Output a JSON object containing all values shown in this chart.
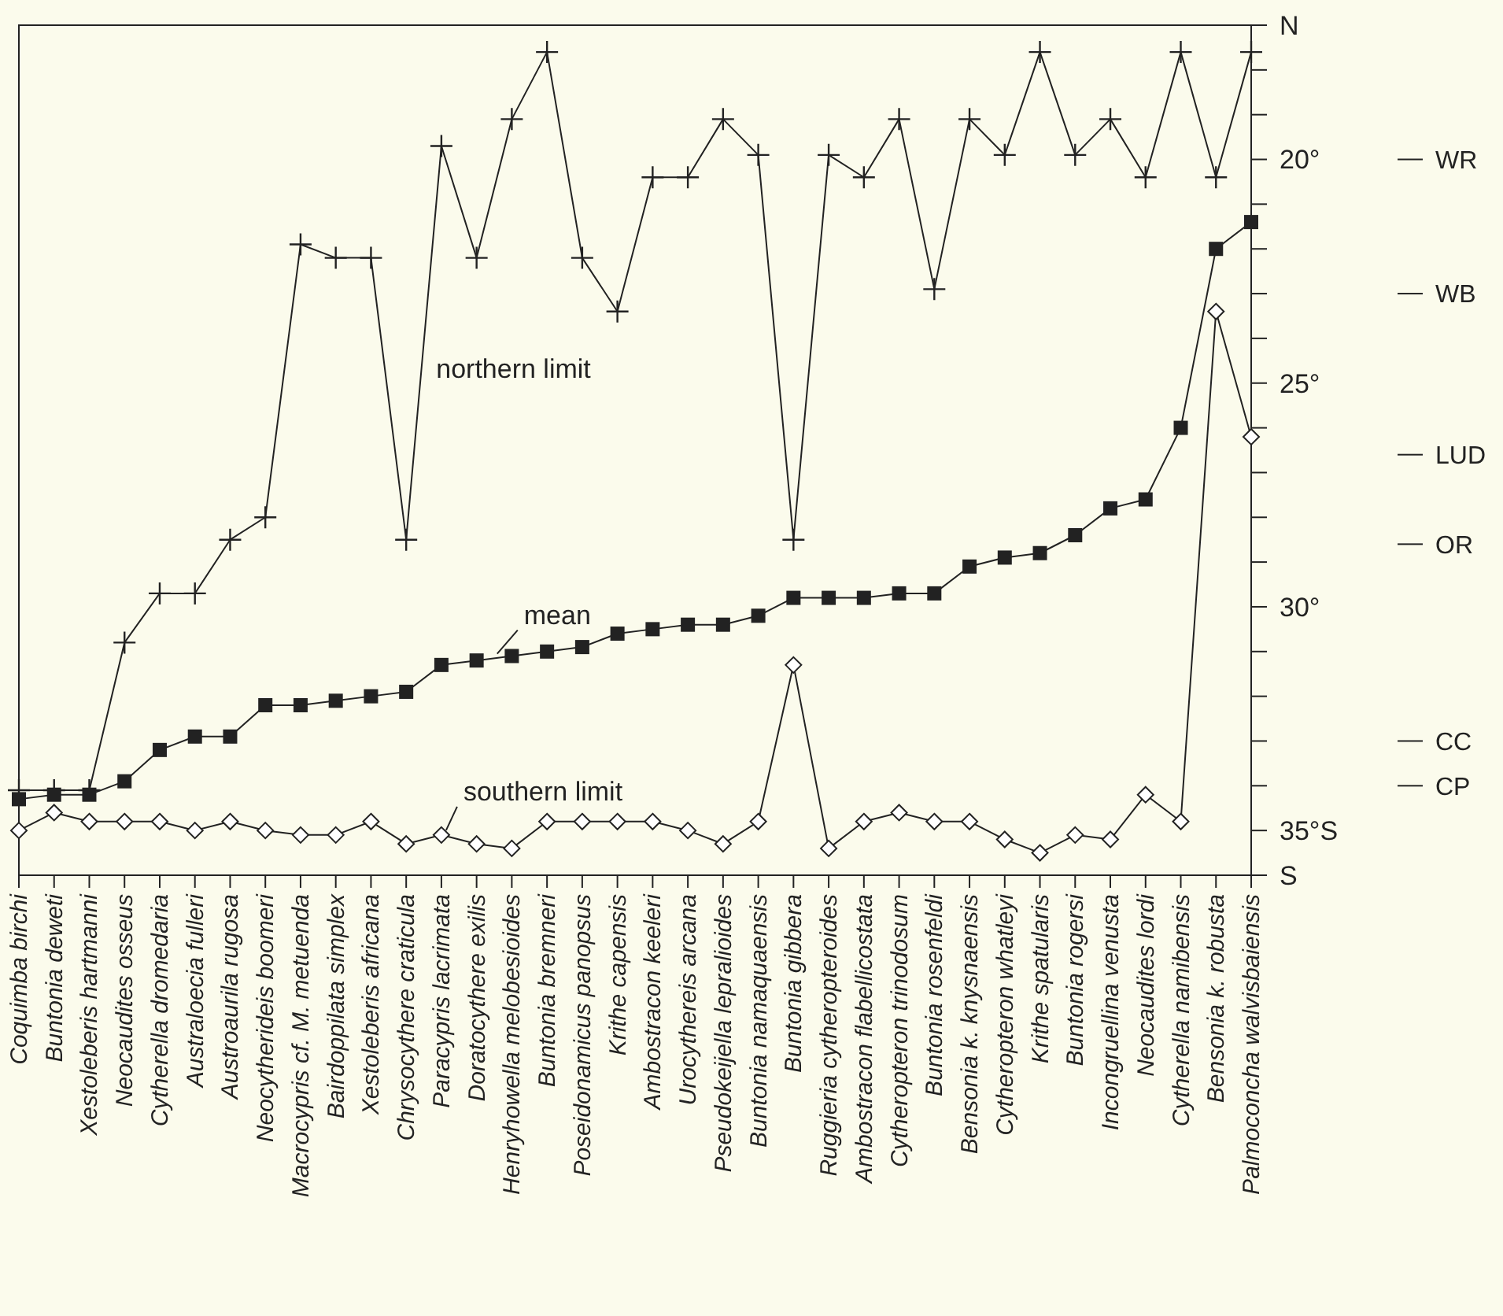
{
  "chart_data": {
    "type": "line",
    "categories": [
      "Coquimba birchi",
      "Buntonia deweti",
      "Xestoleberis hartmanni",
      "Neocaudites osseus",
      "Cytherella dromedaria",
      "Australoecia fulleri",
      "Austroaurila rugosa",
      "Neocytherideis boomeri",
      "Macrocypris cf. M. metuenda",
      "Bairdoppilata simplex",
      "Xestoleberis africana",
      "Chrysocythere craticula",
      "Paracypris lacrimata",
      "Doratocythere exilis",
      "Henryhowella melobesioides",
      "Buntonia bremneri",
      "Poseidonamicus panopsus",
      "Krithe capensis",
      "Ambostracon keeleri",
      "Urocythereis arcana",
      "Pseudokeijella lepralioides",
      "Buntonia namaquaensis",
      "Buntonia gibbera",
      "Ruggieria cytheropteroides",
      "Ambostracon flabellicostata",
      "Cytheropteron trinodosum",
      "Buntonia rosenfeldi",
      "Bensonia k. knysnaensis",
      "Cytheropteron whatleyi",
      "Krithe spatularis",
      "Buntonia rogersi",
      "Incongruellina venusta",
      "Neocaudites lordi",
      "Cytherella namibensis",
      "Bensonia k. robusta",
      "Palmoconcha walvisbaiensis"
    ],
    "series": [
      {
        "name": "northern limit",
        "color": "#222222",
        "marker": "cross",
        "values": [
          34.1,
          34.1,
          34.1,
          30.8,
          29.7,
          29.7,
          28.5,
          28.0,
          21.9,
          22.2,
          22.2,
          28.5,
          19.7,
          22.2,
          19.1,
          17.6,
          22.2,
          23.4,
          20.4,
          20.4,
          19.1,
          19.9,
          28.5,
          19.9,
          20.4,
          19.1,
          22.9,
          19.1,
          19.9,
          17.6,
          19.9,
          19.1,
          20.4,
          17.6,
          20.4,
          17.6
        ]
      },
      {
        "name": "mean",
        "color": "#222222",
        "marker": "square",
        "values": [
          34.3,
          34.2,
          34.2,
          33.9,
          33.2,
          32.9,
          32.9,
          32.2,
          32.2,
          32.1,
          32.0,
          31.9,
          31.3,
          31.2,
          31.1,
          31.0,
          30.9,
          30.6,
          30.5,
          30.4,
          30.4,
          30.2,
          29.8,
          29.8,
          29.8,
          29.7,
          29.7,
          29.1,
          28.9,
          28.8,
          28.4,
          27.8,
          27.6,
          26.0,
          22.0,
          21.4
        ]
      },
      {
        "name": "southern limit",
        "color": "#222222",
        "marker": "diamond",
        "values": [
          35.0,
          34.6,
          34.8,
          34.8,
          34.8,
          35.0,
          34.8,
          35.0,
          35.1,
          35.1,
          34.8,
          35.3,
          35.1,
          35.3,
          35.4,
          34.8,
          34.8,
          34.8,
          34.8,
          35.0,
          35.3,
          34.8,
          31.3,
          35.4,
          34.8,
          34.6,
          34.8,
          34.8,
          35.2,
          35.5,
          35.1,
          35.2,
          34.2,
          34.8,
          23.4,
          26.2
        ]
      }
    ],
    "ylim": [
      36,
      17
    ],
    "yticks": [
      {
        "value": 17,
        "label": "N"
      },
      {
        "value": 18,
        "label": null
      },
      {
        "value": 19,
        "label": null
      },
      {
        "value": 20,
        "label": "20°"
      },
      {
        "value": 21,
        "label": null
      },
      {
        "value": 22,
        "label": null
      },
      {
        "value": 23,
        "label": null
      },
      {
        "value": 24,
        "label": null
      },
      {
        "value": 25,
        "label": "25°"
      },
      {
        "value": 26,
        "label": null
      },
      {
        "value": 27,
        "label": null
      },
      {
        "value": 28,
        "label": null
      },
      {
        "value": 29,
        "label": null
      },
      {
        "value": 30,
        "label": "30°"
      },
      {
        "value": 31,
        "label": null
      },
      {
        "value": 32,
        "label": null
      },
      {
        "value": 33,
        "label": null
      },
      {
        "value": 34,
        "label": null
      },
      {
        "value": 35,
        "label": "35°S"
      },
      {
        "value": 36,
        "label": "S"
      }
    ],
    "ref_lines": [
      {
        "axis": "y",
        "value": 20.0,
        "label": "WR"
      },
      {
        "axis": "y",
        "value": 23.0,
        "label": "WB"
      },
      {
        "axis": "y",
        "value": 26.6,
        "label": "LUD"
      },
      {
        "axis": "y",
        "value": 28.6,
        "label": "OR"
      },
      {
        "axis": "y",
        "value": 33.0,
        "label": "CC"
      },
      {
        "axis": "y",
        "value": 34.0,
        "label": "CP"
      }
    ],
    "grid": false,
    "legend": false
  }
}
